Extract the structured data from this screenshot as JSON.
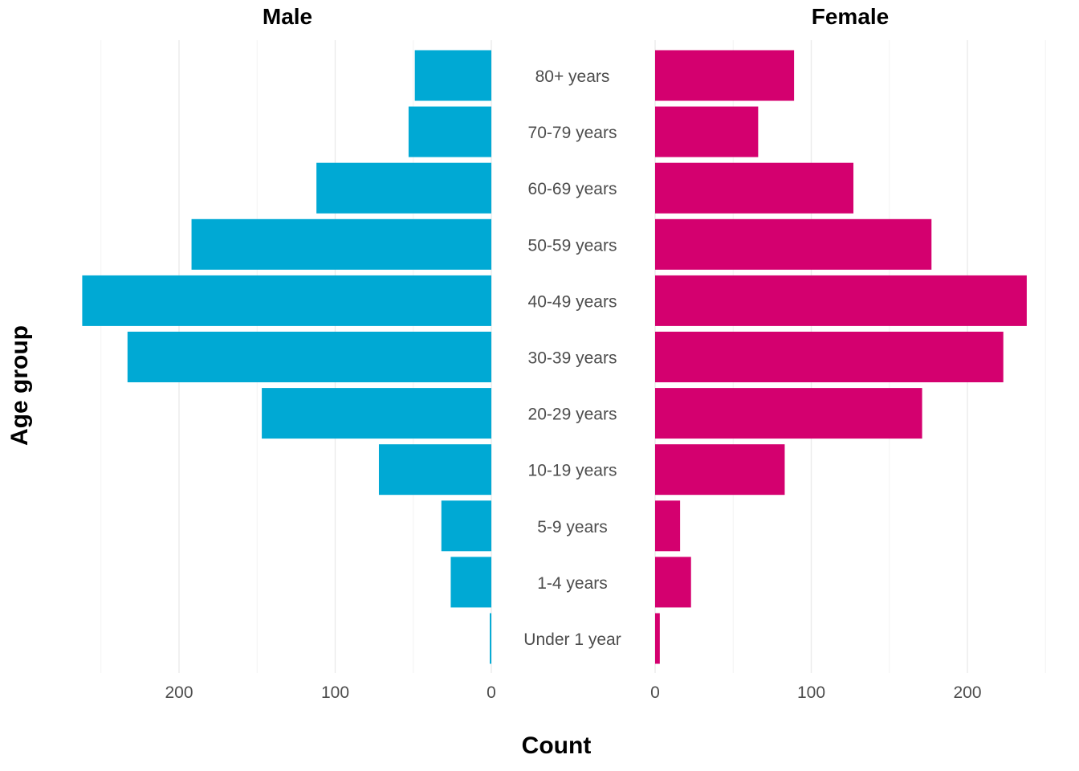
{
  "chart_data": {
    "type": "bar",
    "orientation": "horizontal",
    "layout": "population-pyramid",
    "categories": [
      "80+ years",
      "70-79 years",
      "60-69 years",
      "50-59 years",
      "40-49 years",
      "30-39 years",
      "20-29 years",
      "10-19 years",
      "5-9 years",
      "1-4 years",
      "Under 1 year"
    ],
    "series": [
      {
        "name": "Male",
        "color": "#00a9d4",
        "values": [
          49,
          53,
          112,
          192,
          262,
          233,
          147,
          72,
          32,
          26,
          1
        ]
      },
      {
        "name": "Female",
        "color": "#d4006f",
        "values": [
          89,
          66,
          127,
          177,
          238,
          223,
          171,
          83,
          16,
          23,
          3
        ]
      }
    ],
    "xlabel": "Count",
    "ylabel": "Age group",
    "xticks": [
      0,
      100,
      200
    ],
    "xticks_male_labels": [
      "200",
      "100",
      "0"
    ],
    "xticks_female_labels": [
      "0",
      "100",
      "200"
    ],
    "xlim": [
      0,
      250
    ],
    "grid": "vertical"
  }
}
